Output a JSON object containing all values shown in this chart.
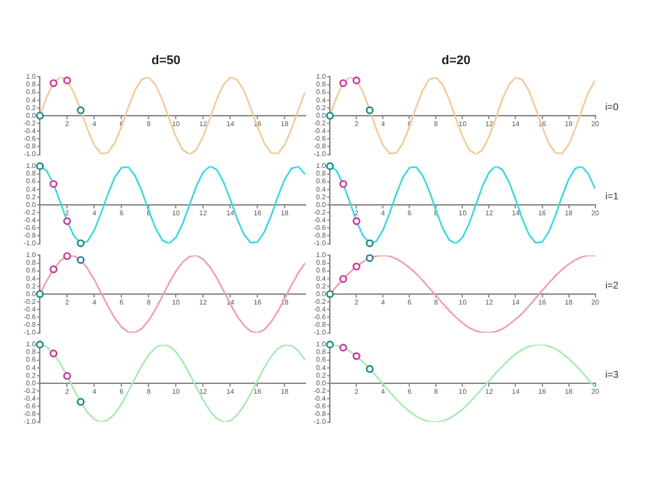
{
  "chart_data": [
    {
      "type": "line",
      "title": "d=50",
      "marker": "none",
      "x": [
        0,
        0.5,
        1,
        1.5,
        2,
        2.5,
        3,
        3.5,
        4,
        4.5,
        5,
        5.5,
        6,
        6.5,
        7,
        7.5,
        8,
        8.5,
        9,
        9.5,
        10,
        10.5,
        11,
        11.5,
        12,
        12.5,
        13,
        13.5,
        14,
        14.5,
        15,
        15.5,
        16,
        16.5,
        17,
        17.5,
        18,
        18.5,
        19,
        19.5
      ],
      "xlim": [
        0,
        19.5
      ],
      "xticks": [
        2,
        4,
        6,
        8,
        10,
        12,
        14,
        16,
        18
      ],
      "ylim": [
        -1,
        1
      ],
      "yticks": [
        {
          "value": -1,
          "label": "-1.0"
        },
        {
          "value": -0.8,
          "label": "-0.8"
        },
        {
          "value": -0.6,
          "label": "-0.6"
        },
        {
          "value": -0.4,
          "label": "-0.4"
        },
        {
          "value": -0.2,
          "label": "-0.2"
        },
        {
          "value": 0,
          "label": "0.0"
        },
        {
          "value": 0.2,
          "label": "0.2"
        },
        {
          "value": 0.4,
          "label": "0.4"
        },
        {
          "value": 0.6,
          "label": "0.6"
        },
        {
          "value": 0.8,
          "label": "0.8"
        },
        {
          "value": 1,
          "label": "1.0"
        }
      ],
      "series": [
        {
          "color": "#f5c89a",
          "values": [
            0,
            0.48,
            0.84,
            1.0,
            0.91,
            0.6,
            0.14,
            -0.35,
            -0.76,
            -0.98,
            -0.96,
            -0.71,
            -0.28,
            0.22,
            0.66,
            0.94,
            0.99,
            0.8,
            0.41,
            -0.08,
            -0.54,
            -0.88,
            -1.0,
            -0.88,
            -0.54,
            -0.07,
            0.42,
            0.8,
            0.99,
            0.93,
            0.65,
            0.2,
            -0.29,
            -0.71,
            -0.96,
            -0.98,
            -0.75,
            -0.34,
            0.15,
            0.61
          ]
        },
        {
          "type": "scatter",
          "marker": "circle",
          "x": [
            0,
            1,
            2,
            3
          ],
          "colors": [
            "#1e8c7e",
            "#c8399c",
            "#c8399c",
            "#1e8c7e"
          ],
          "values": [
            0,
            0.84,
            0.91,
            0.14
          ]
        }
      ]
    },
    {
      "type": "line",
      "title": "d=20",
      "marker": "none",
      "annotations": [
        "i=0"
      ],
      "x": [
        0,
        0.5,
        1,
        1.5,
        2,
        2.5,
        3,
        3.5,
        4,
        4.5,
        5,
        5.5,
        6,
        6.5,
        7,
        7.5,
        8,
        8.5,
        9,
        9.5,
        10,
        10.5,
        11,
        11.5,
        12,
        12.5,
        13,
        13.5,
        14,
        14.5,
        15,
        15.5,
        16,
        16.5,
        17,
        17.5,
        18,
        18.5,
        19,
        19.5,
        20
      ],
      "xlim": [
        0,
        20
      ],
      "xticks": [
        2,
        4,
        6,
        8,
        10,
        12,
        14,
        16,
        18,
        20
      ],
      "ylim": [
        -1,
        1
      ],
      "yticks": [
        {
          "value": -1,
          "label": "-1.0"
        },
        {
          "value": -0.8,
          "label": "-0.8"
        },
        {
          "value": -0.6,
          "label": "-0.6"
        },
        {
          "value": -0.4,
          "label": "-0.4"
        },
        {
          "value": -0.2,
          "label": "-0.2"
        },
        {
          "value": 0,
          "label": "0.0"
        },
        {
          "value": 0.2,
          "label": "0.2"
        },
        {
          "value": 0.4,
          "label": "0.4"
        },
        {
          "value": 0.6,
          "label": "0.6"
        },
        {
          "value": 0.8,
          "label": "0.8"
        },
        {
          "value": 1,
          "label": "1.0"
        }
      ],
      "series": [
        {
          "color": "#f5c89a",
          "values": [
            0,
            0.48,
            0.84,
            1.0,
            0.91,
            0.6,
            0.14,
            -0.35,
            -0.76,
            -0.98,
            -0.96,
            -0.71,
            -0.28,
            0.22,
            0.66,
            0.94,
            0.99,
            0.8,
            0.41,
            -0.08,
            -0.54,
            -0.88,
            -1.0,
            -0.88,
            -0.54,
            -0.07,
            0.42,
            0.8,
            0.99,
            0.93,
            0.65,
            0.2,
            -0.29,
            -0.71,
            -0.96,
            -0.98,
            -0.75,
            -0.34,
            0.15,
            0.61,
            0.91
          ]
        },
        {
          "type": "scatter",
          "marker": "circle",
          "x": [
            0,
            1,
            2,
            3
          ],
          "colors": [
            "#1e8c7e",
            "#c8399c",
            "#c8399c",
            "#1e8c7e"
          ],
          "values": [
            0,
            0.84,
            0.91,
            0.14
          ]
        }
      ]
    },
    {
      "type": "line",
      "marker": "none",
      "x": [
        0,
        0.5,
        1,
        1.5,
        2,
        2.5,
        3,
        3.5,
        4,
        4.5,
        5,
        5.5,
        6,
        6.5,
        7,
        7.5,
        8,
        8.5,
        9,
        9.5,
        10,
        10.5,
        11,
        11.5,
        12,
        12.5,
        13,
        13.5,
        14,
        14.5,
        15,
        15.5,
        16,
        16.5,
        17,
        17.5,
        18,
        18.5,
        19,
        19.5
      ],
      "xlim": [
        0,
        19.5
      ],
      "xticks": [
        2,
        4,
        6,
        8,
        10,
        12,
        14,
        16,
        18
      ],
      "ylim": [
        -1,
        1
      ],
      "yticks": [
        {
          "value": -1,
          "label": "-1.0"
        },
        {
          "value": -0.8,
          "label": "-0.8"
        },
        {
          "value": -0.6,
          "label": "-0.6"
        },
        {
          "value": -0.4,
          "label": "-0.4"
        },
        {
          "value": -0.2,
          "label": "-0.2"
        },
        {
          "value": 0,
          "label": "0.0"
        },
        {
          "value": 0.2,
          "label": "0.2"
        },
        {
          "value": 0.4,
          "label": "0.4"
        },
        {
          "value": 0.6,
          "label": "0.6"
        },
        {
          "value": 0.8,
          "label": "0.8"
        },
        {
          "value": 1,
          "label": "1.0"
        }
      ],
      "series": [
        {
          "color": "#3ad8e0",
          "values": [
            1,
            0.88,
            0.54,
            0.07,
            -0.42,
            -0.8,
            -0.99,
            -0.94,
            -0.65,
            -0.21,
            0.28,
            0.71,
            0.96,
            0.98,
            0.75,
            0.35,
            -0.15,
            -0.6,
            -0.91,
            -1.0,
            -0.84,
            -0.48,
            0.0,
            0.48,
            0.84,
            1.0,
            0.91,
            0.59,
            0.14,
            -0.36,
            -0.76,
            -0.98,
            -0.96,
            -0.7,
            -0.28,
            0.22,
            0.66,
            0.94,
            0.99,
            0.79
          ]
        },
        {
          "type": "scatter",
          "marker": "circle",
          "x": [
            0,
            1,
            2,
            3
          ],
          "colors": [
            "#1e8c7e",
            "#c8399c",
            "#c8399c",
            "#1e8c7e"
          ],
          "values": [
            1,
            0.54,
            -0.42,
            -0.99
          ]
        }
      ]
    },
    {
      "type": "line",
      "marker": "none",
      "annotations": [
        "i=1"
      ],
      "x": [
        0,
        0.5,
        1,
        1.5,
        2,
        2.5,
        3,
        3.5,
        4,
        4.5,
        5,
        5.5,
        6,
        6.5,
        7,
        7.5,
        8,
        8.5,
        9,
        9.5,
        10,
        10.5,
        11,
        11.5,
        12,
        12.5,
        13,
        13.5,
        14,
        14.5,
        15,
        15.5,
        16,
        16.5,
        17,
        17.5,
        18,
        18.5,
        19,
        19.5,
        20
      ],
      "xlim": [
        0,
        20
      ],
      "xticks": [
        2,
        4,
        6,
        8,
        10,
        12,
        14,
        16,
        18,
        20
      ],
      "ylim": [
        -1,
        1
      ],
      "yticks": [
        {
          "value": -1,
          "label": "-1.0"
        },
        {
          "value": -0.8,
          "label": "-0.8"
        },
        {
          "value": -0.6,
          "label": "-0.6"
        },
        {
          "value": -0.4,
          "label": "-0.4"
        },
        {
          "value": -0.2,
          "label": "-0.2"
        },
        {
          "value": 0,
          "label": "0.0"
        },
        {
          "value": 0.2,
          "label": "0.2"
        },
        {
          "value": 0.4,
          "label": "0.4"
        },
        {
          "value": 0.6,
          "label": "0.6"
        },
        {
          "value": 0.8,
          "label": "0.8"
        },
        {
          "value": 1,
          "label": "1.0"
        }
      ],
      "series": [
        {
          "color": "#3ad8e0",
          "values": [
            1,
            0.88,
            0.54,
            0.07,
            -0.42,
            -0.8,
            -0.99,
            -0.94,
            -0.65,
            -0.21,
            0.28,
            0.71,
            0.96,
            0.98,
            0.75,
            0.35,
            -0.15,
            -0.6,
            -0.91,
            -1.0,
            -0.84,
            -0.48,
            0.0,
            0.48,
            0.84,
            1.0,
            0.91,
            0.59,
            0.14,
            -0.36,
            -0.76,
            -0.98,
            -0.96,
            -0.7,
            -0.28,
            0.22,
            0.66,
            0.94,
            0.99,
            0.79,
            0.41
          ]
        },
        {
          "type": "scatter",
          "marker": "circle",
          "x": [
            0,
            1,
            2,
            3
          ],
          "colors": [
            "#1e8c7e",
            "#c8399c",
            "#c8399c",
            "#1e8c7e"
          ],
          "values": [
            1,
            0.54,
            -0.42,
            -0.99
          ]
        }
      ]
    },
    {
      "type": "line",
      "marker": "none",
      "x": [
        0,
        0.5,
        1,
        1.5,
        2,
        2.5,
        3,
        3.5,
        4,
        4.5,
        5,
        5.5,
        6,
        6.5,
        7,
        7.5,
        8,
        8.5,
        9,
        9.5,
        10,
        10.5,
        11,
        11.5,
        12,
        12.5,
        13,
        13.5,
        14,
        14.5,
        15,
        15.5,
        16,
        16.5,
        17,
        17.5,
        18,
        18.5,
        19,
        19.5
      ],
      "xlim": [
        0,
        19.5
      ],
      "xticks": [
        2,
        4,
        6,
        8,
        10,
        12,
        14,
        16,
        18
      ],
      "ylim": [
        -1,
        1
      ],
      "yticks": [
        {
          "value": -1,
          "label": "-1.0"
        },
        {
          "value": -0.8,
          "label": "-0.8"
        },
        {
          "value": -0.6,
          "label": "-0.6"
        },
        {
          "value": -0.4,
          "label": "-0.4"
        },
        {
          "value": -0.2,
          "label": "-0.2"
        },
        {
          "value": 0,
          "label": "0.0"
        },
        {
          "value": 0.2,
          "label": "0.2"
        },
        {
          "value": 0.4,
          "label": "0.4"
        },
        {
          "value": 0.6,
          "label": "0.6"
        },
        {
          "value": 0.8,
          "label": "0.8"
        },
        {
          "value": 1,
          "label": "1.0"
        }
      ],
      "series": [
        {
          "color": "#f0a0a8",
          "values": [
            0,
            0.34,
            0.64,
            0.86,
            0.98,
            0.99,
            0.88,
            0.66,
            0.37,
            0.03,
            -0.31,
            -0.62,
            -0.85,
            -0.98,
            -0.99,
            -0.89,
            -0.68,
            -0.39,
            -0.06,
            0.29,
            0.59,
            0.83,
            0.97,
            1.0,
            0.9,
            0.7,
            0.42,
            0.09,
            -0.26,
            -0.57,
            -0.81,
            -0.96,
            -1.0,
            -0.92,
            -0.72,
            -0.44,
            -0.11,
            0.23,
            0.55,
            0.8
          ]
        },
        {
          "type": "scatter",
          "marker": "circle",
          "x": [
            0,
            1,
            2,
            3
          ],
          "colors": [
            "#1e8c7e",
            "#c8399c",
            "#c8399c",
            "#2a7fa0"
          ],
          "values": [
            0,
            0.64,
            0.98,
            0.88
          ]
        }
      ]
    },
    {
      "type": "line",
      "marker": "none",
      "annotations": [
        "i=2"
      ],
      "x": [
        0,
        0.5,
        1,
        1.5,
        2,
        2.5,
        3,
        3.5,
        4,
        4.5,
        5,
        5.5,
        6,
        6.5,
        7,
        7.5,
        8,
        8.5,
        9,
        9.5,
        10,
        10.5,
        11,
        11.5,
        12,
        12.5,
        13,
        13.5,
        14,
        14.5,
        15,
        15.5,
        16,
        16.5,
        17,
        17.5,
        18,
        18.5,
        19,
        19.5,
        20
      ],
      "xlim": [
        0,
        20
      ],
      "xticks": [
        2,
        4,
        6,
        8,
        10,
        12,
        14,
        16,
        18,
        20
      ],
      "ylim": [
        -1,
        1
      ],
      "yticks": [
        {
          "value": -1,
          "label": "-1.0"
        },
        {
          "value": -0.8,
          "label": "-0.8"
        },
        {
          "value": -0.6,
          "label": "-0.6"
        },
        {
          "value": -0.4,
          "label": "-0.4"
        },
        {
          "value": -0.2,
          "label": "-0.2"
        },
        {
          "value": 0,
          "label": "0.0"
        },
        {
          "value": 0.2,
          "label": "0.2"
        },
        {
          "value": 0.4,
          "label": "0.4"
        },
        {
          "value": 0.6,
          "label": "0.6"
        },
        {
          "value": 0.8,
          "label": "0.8"
        },
        {
          "value": 1,
          "label": "1.0"
        }
      ],
      "series": [
        {
          "color": "#f0a0a8",
          "values": [
            0,
            0.2,
            0.39,
            0.56,
            0.71,
            0.84,
            0.93,
            0.98,
            1.0,
            0.98,
            0.91,
            0.81,
            0.68,
            0.53,
            0.35,
            0.15,
            -0.04,
            -0.24,
            -0.43,
            -0.6,
            -0.75,
            -0.87,
            -0.95,
            -0.99,
            -1.0,
            -0.97,
            -0.9,
            -0.79,
            -0.65,
            -0.5,
            -0.31,
            -0.11,
            0.09,
            0.28,
            0.47,
            0.63,
            0.77,
            0.88,
            0.96,
            1.0,
            0.99
          ]
        },
        {
          "type": "scatter",
          "marker": "circle",
          "x": [
            0,
            1,
            2,
            3
          ],
          "colors": [
            "#1e8c7e",
            "#c8399c",
            "#c8399c",
            "#2a7fa0"
          ],
          "values": [
            0,
            0.39,
            0.71,
            0.93
          ]
        }
      ]
    },
    {
      "type": "line",
      "marker": "none",
      "x": [
        0,
        0.5,
        1,
        1.5,
        2,
        2.5,
        3,
        3.5,
        4,
        4.5,
        5,
        5.5,
        6,
        6.5,
        7,
        7.5,
        8,
        8.5,
        9,
        9.5,
        10,
        10.5,
        11,
        11.5,
        12,
        12.5,
        13,
        13.5,
        14,
        14.5,
        15,
        15.5,
        16,
        16.5,
        17,
        17.5,
        18,
        18.5,
        19,
        19.5
      ],
      "xlim": [
        0,
        19.5
      ],
      "xticks": [
        2,
        4,
        6,
        8,
        10,
        12,
        14,
        16,
        18
      ],
      "ylim": [
        -1,
        1
      ],
      "yticks": [
        {
          "value": -1,
          "label": "-1.0"
        },
        {
          "value": -0.8,
          "label": "-0.8"
        },
        {
          "value": -0.6,
          "label": "-0.6"
        },
        {
          "value": -0.4,
          "label": "-0.4"
        },
        {
          "value": -0.2,
          "label": "-0.2"
        },
        {
          "value": 0,
          "label": "0.0"
        },
        {
          "value": 0.2,
          "label": "0.2"
        },
        {
          "value": 0.4,
          "label": "0.4"
        },
        {
          "value": 0.6,
          "label": "0.6"
        },
        {
          "value": 0.8,
          "label": "0.8"
        },
        {
          "value": 1,
          "label": "1.0"
        }
      ],
      "series": [
        {
          "color": "#a8eab0",
          "values": [
            1,
            0.94,
            0.77,
            0.51,
            0.19,
            -0.16,
            -0.48,
            -0.75,
            -0.93,
            -1.0,
            -0.95,
            -0.79,
            -0.53,
            -0.21,
            0.13,
            0.46,
            0.73,
            0.92,
            1.0,
            0.96,
            0.81,
            0.56,
            0.24,
            -0.1,
            -0.43,
            -0.71,
            -0.91,
            -1.0,
            -0.97,
            -0.82,
            -0.58,
            -0.27,
            0.07,
            0.41,
            0.69,
            0.9,
            0.99,
            0.97,
            0.84,
            0.6
          ]
        },
        {
          "type": "scatter",
          "marker": "circle",
          "x": [
            0,
            1,
            2,
            3
          ],
          "colors": [
            "#1e8c7e",
            "#c8399c",
            "#c8399c",
            "#1e8c7e"
          ],
          "values": [
            1,
            0.77,
            0.19,
            -0.48
          ]
        }
      ]
    },
    {
      "type": "line",
      "marker": "none",
      "annotations": [
        "i=3"
      ],
      "x": [
        0,
        0.5,
        1,
        1.5,
        2,
        2.5,
        3,
        3.5,
        4,
        4.5,
        5,
        5.5,
        6,
        6.5,
        7,
        7.5,
        8,
        8.5,
        9,
        9.5,
        10,
        10.5,
        11,
        11.5,
        12,
        12.5,
        13,
        13.5,
        14,
        14.5,
        15,
        15.5,
        16,
        16.5,
        17,
        17.5,
        18,
        18.5,
        19,
        19.5,
        20
      ],
      "xlim": [
        0,
        20
      ],
      "xticks": [
        2,
        4,
        6,
        8,
        10,
        12,
        14,
        16,
        18,
        20
      ],
      "ylim": [
        -1,
        1
      ],
      "yticks": [
        {
          "value": -1,
          "label": "-1.0"
        },
        {
          "value": -0.8,
          "label": "-0.8"
        },
        {
          "value": -0.6,
          "label": "-0.6"
        },
        {
          "value": -0.4,
          "label": "-0.4"
        },
        {
          "value": -0.2,
          "label": "-0.2"
        },
        {
          "value": 0,
          "label": "0.0"
        },
        {
          "value": 0.2,
          "label": "0.2"
        },
        {
          "value": 0.4,
          "label": "0.4"
        },
        {
          "value": 0.6,
          "label": "0.6"
        },
        {
          "value": 0.8,
          "label": "0.8"
        },
        {
          "value": 1,
          "label": "1.0"
        }
      ],
      "series": [
        {
          "color": "#a8eab0",
          "values": [
            1,
            0.98,
            0.92,
            0.83,
            0.7,
            0.55,
            0.37,
            0.18,
            -0.02,
            -0.22,
            -0.41,
            -0.58,
            -0.73,
            -0.85,
            -0.94,
            -0.99,
            -1.0,
            -0.97,
            -0.91,
            -0.8,
            -0.67,
            -0.5,
            -0.32,
            -0.13,
            0.06,
            0.26,
            0.44,
            0.61,
            0.76,
            0.87,
            0.95,
            0.99,
            1.0,
            0.96,
            0.89,
            0.78,
            0.63,
            0.47,
            0.29,
            0.09,
            -0.11
          ]
        },
        {
          "type": "scatter",
          "marker": "circle",
          "x": [
            0,
            1,
            2,
            3
          ],
          "colors": [
            "#1e8c7e",
            "#c8399c",
            "#c8399c",
            "#1e8c7e"
          ],
          "values": [
            1,
            0.92,
            0.7,
            0.37
          ]
        }
      ]
    }
  ]
}
